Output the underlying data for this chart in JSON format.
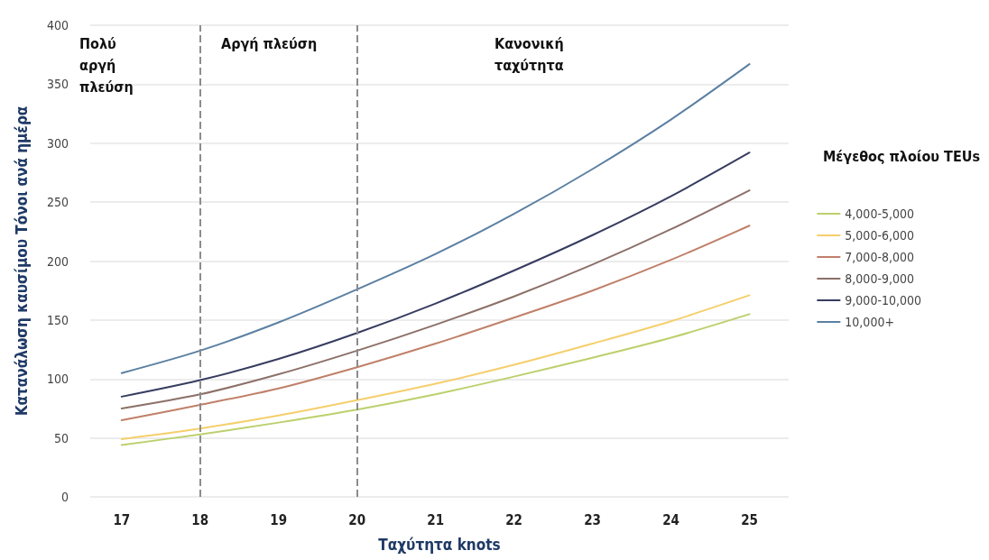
{
  "chart_data": {
    "type": "line",
    "xlabel": "Ταχύτητα knots",
    "ylabel": "Κατανάλωση καυσίμου Τόνοι ανά ημέρα",
    "legend_title": "Μέγεθος πλοίου TEUs",
    "x": [
      17,
      18,
      19,
      20,
      21,
      22,
      23,
      24,
      25
    ],
    "xlim": [
      16.6,
      25.5
    ],
    "xticks": [
      17,
      18,
      19,
      20,
      21,
      22,
      23,
      24,
      25
    ],
    "ylim": [
      0,
      400
    ],
    "yticks": [
      0,
      50,
      100,
      150,
      200,
      250,
      300,
      350,
      400
    ],
    "series": [
      {
        "name": "4,000-5,000",
        "color": "#bcd06c",
        "values": [
          44,
          53,
          63,
          74,
          87,
          102,
          118,
          135,
          155
        ]
      },
      {
        "name": "5,000-6,000",
        "color": "#f5cf6c",
        "values": [
          49,
          58,
          69,
          82,
          96,
          112,
          130,
          149,
          171
        ]
      },
      {
        "name": "7,000-8,000",
        "color": "#c0806a",
        "values": [
          65,
          78,
          92,
          110,
          130,
          152,
          175,
          201,
          230
        ]
      },
      {
        "name": "8,000-9,000",
        "color": "#8c7068",
        "values": [
          75,
          87,
          104,
          124,
          146,
          170,
          197,
          227,
          260
        ]
      },
      {
        "name": "9,000-10,000",
        "color": "#373c60",
        "values": [
          85,
          99,
          117,
          139,
          164,
          192,
          222,
          255,
          292
        ]
      },
      {
        "name": "10,000+",
        "color": "#5b80a2",
        "values": [
          105,
          124,
          148,
          176,
          206,
          240,
          278,
          320,
          367
        ]
      }
    ],
    "ref_lines": [
      {
        "axis": "x",
        "value": 18,
        "color": "#8c8c8c",
        "line_style": "dashed"
      },
      {
        "axis": "x",
        "value": 20,
        "color": "#8c8c8c",
        "line_style": "dashed"
      }
    ],
    "annotations": [
      "Πολύ αργή πλεύση",
      "Αργή πλεύση",
      "Κανονική ταχύτητα"
    ],
    "grid": "y",
    "legend": "right",
    "marker": "none",
    "line_style": "solid"
  }
}
